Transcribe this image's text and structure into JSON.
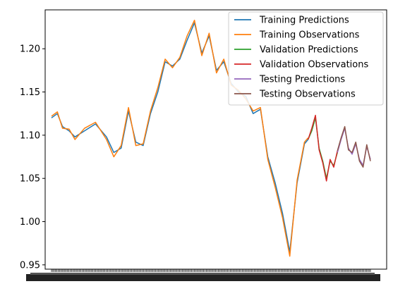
{
  "chart_data": {
    "type": "line",
    "title": "",
    "xlabel": "",
    "ylabel": "",
    "ylim": [
      0.945,
      1.245
    ],
    "y_ticks": [
      {
        "value": 0.95,
        "label": "0.95"
      },
      {
        "value": 1.0,
        "label": "1.00"
      },
      {
        "value": 1.05,
        "label": "1.05"
      },
      {
        "value": 1.1,
        "label": "1.10"
      },
      {
        "value": 1.15,
        "label": "1.15"
      },
      {
        "value": 1.2,
        "label": "1.20"
      }
    ],
    "x_tick_labels_note": "dense, overlapping and illegible",
    "grid": false,
    "legend_placement": "top-right",
    "series": [
      {
        "name": "Training Predictions",
        "color": "#1f77b4",
        "x": [
          0,
          8,
          15,
          24,
          32,
          45,
          60,
          75,
          85,
          95,
          105,
          115,
          125,
          135,
          145,
          155,
          165,
          175,
          185,
          195,
          205,
          215,
          225,
          235,
          245,
          255,
          265,
          275,
          285,
          295,
          305,
          315,
          325,
          335,
          345,
          350
        ],
        "y": [
          1.12,
          1.125,
          1.11,
          1.105,
          1.098,
          1.105,
          1.113,
          1.098,
          1.08,
          1.085,
          1.128,
          1.092,
          1.088,
          1.125,
          1.15,
          1.185,
          1.18,
          1.188,
          1.21,
          1.23,
          1.195,
          1.215,
          1.175,
          1.185,
          1.16,
          1.15,
          1.145,
          1.125,
          1.13,
          1.075,
          1.045,
          1.01,
          0.965,
          1.045,
          1.09,
          1.095
        ]
      },
      {
        "name": "Training Observations",
        "color": "#ff7f0e",
        "x": [
          0,
          8,
          15,
          24,
          32,
          45,
          60,
          75,
          85,
          95,
          105,
          115,
          125,
          135,
          145,
          155,
          165,
          175,
          185,
          195,
          205,
          215,
          225,
          235,
          245,
          255,
          265,
          275,
          285,
          295,
          305,
          315,
          325,
          335,
          345,
          350
        ],
        "y": [
          1.122,
          1.127,
          1.108,
          1.107,
          1.095,
          1.108,
          1.115,
          1.095,
          1.075,
          1.088,
          1.132,
          1.088,
          1.09,
          1.128,
          1.155,
          1.188,
          1.178,
          1.19,
          1.215,
          1.233,
          1.192,
          1.218,
          1.172,
          1.188,
          1.158,
          1.152,
          1.142,
          1.128,
          1.132,
          1.072,
          1.04,
          1.005,
          0.96,
          1.048,
          1.092,
          1.097
        ]
      },
      {
        "name": "Validation Predictions",
        "color": "#2ca02c",
        "x": [
          350,
          355,
          360,
          365,
          370,
          375,
          380,
          385,
          390
        ],
        "y": [
          1.095,
          1.105,
          1.12,
          1.085,
          1.07,
          1.05,
          1.07,
          1.065,
          1.08
        ]
      },
      {
        "name": "Validation Observations",
        "color": "#d62728",
        "x": [
          350,
          355,
          360,
          365,
          370,
          375,
          380,
          385,
          390
        ],
        "y": [
          1.095,
          1.108,
          1.123,
          1.083,
          1.068,
          1.047,
          1.072,
          1.063,
          1.082
        ]
      },
      {
        "name": "Testing Predictions",
        "color": "#9467bd",
        "x": [
          390,
          395,
          400,
          405,
          410,
          415,
          420,
          425,
          430,
          435
        ],
        "y": [
          1.08,
          1.095,
          1.108,
          1.085,
          1.078,
          1.09,
          1.072,
          1.065,
          1.087,
          1.072
        ]
      },
      {
        "name": "Testing Observations",
        "color": "#8c564b",
        "x": [
          390,
          395,
          400,
          405,
          410,
          415,
          420,
          425,
          430,
          435
        ],
        "y": [
          1.082,
          1.097,
          1.11,
          1.083,
          1.08,
          1.092,
          1.07,
          1.063,
          1.089,
          1.07
        ]
      }
    ]
  }
}
